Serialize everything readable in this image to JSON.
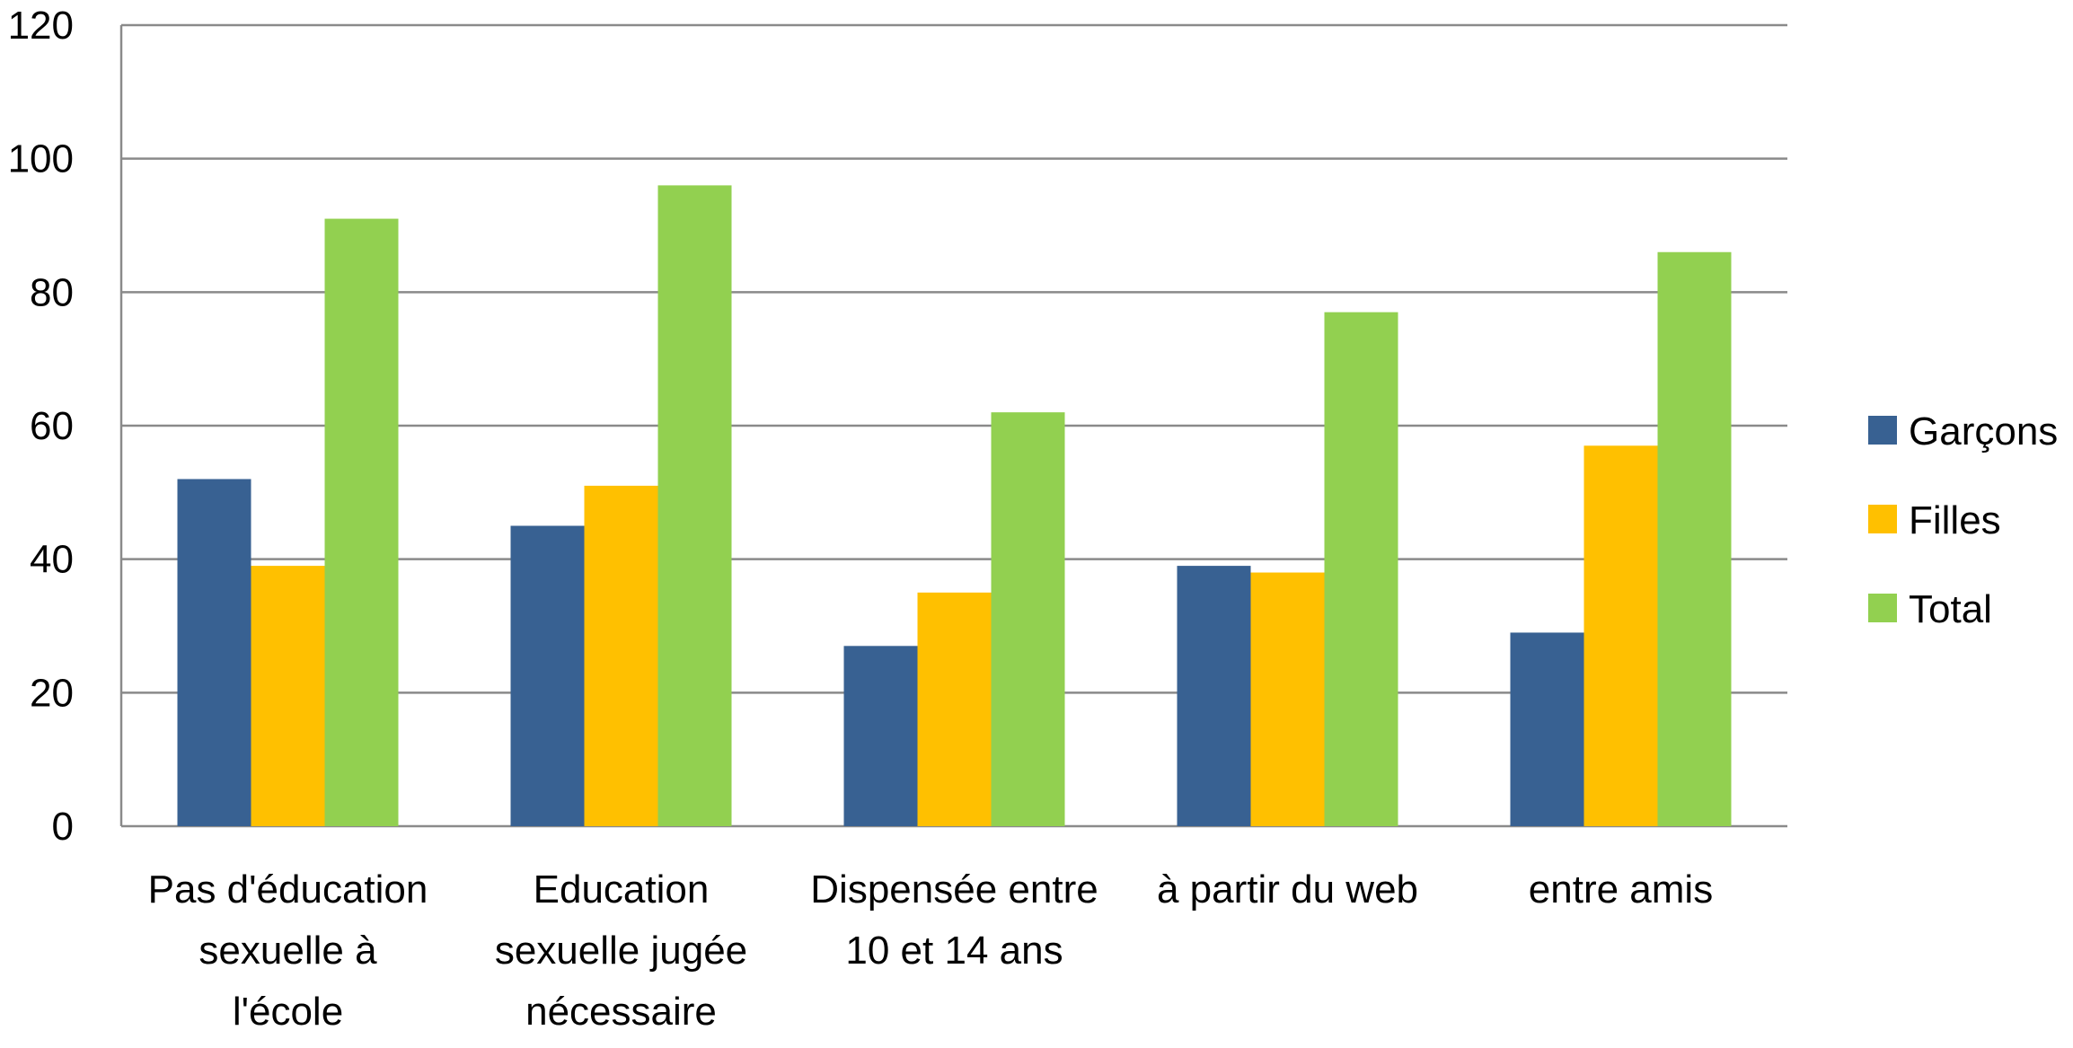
{
  "chart_data": {
    "type": "bar",
    "title": "",
    "xlabel": "",
    "ylabel": "",
    "ylim": [
      0,
      120
    ],
    "yticks": [
      0,
      20,
      40,
      60,
      80,
      100,
      120
    ],
    "grid": true,
    "legend_position": "right",
    "categories": [
      [
        "Pas d'éducation",
        "sexuelle à",
        "l'école"
      ],
      [
        "Education",
        "sexuelle jugée",
        "nécessaire"
      ],
      [
        "Dispensée entre",
        "10 et 14 ans"
      ],
      [
        "à partir du web"
      ],
      [
        "entre amis"
      ]
    ],
    "series": [
      {
        "name": "Garçons",
        "color": "#386192",
        "values": [
          52,
          45,
          27,
          39,
          29
        ]
      },
      {
        "name": "Filles",
        "color": "#FFC000",
        "values": [
          39,
          51,
          35,
          38,
          57
        ]
      },
      {
        "name": "Total",
        "color": "#92D050",
        "values": [
          91,
          96,
          62,
          77,
          86
        ]
      }
    ]
  }
}
